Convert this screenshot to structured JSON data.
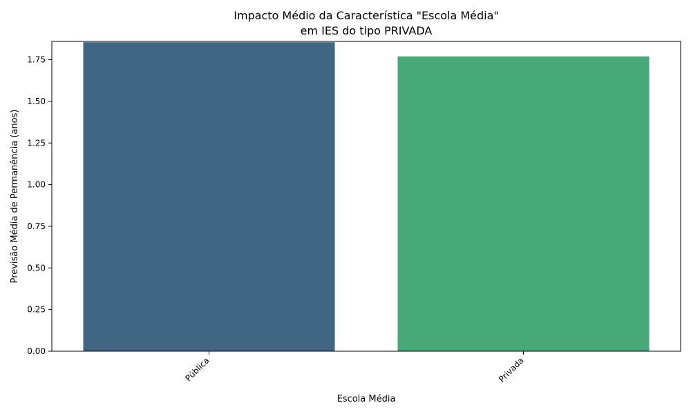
{
  "chart_data": {
    "type": "bar",
    "title_line1": "Impacto Médio da Característica \"Escola Média\"",
    "title_line2": "em IES do tipo PRIVADA",
    "xlabel": "Escola Média",
    "ylabel": "Previsão Média de Permanência (anos)",
    "categories": [
      "Pública",
      "Privada"
    ],
    "values": [
      1.855,
      1.77
    ],
    "colors": [
      "#3f6683",
      "#47a978"
    ],
    "ylim": [
      0,
      1.86
    ],
    "yticks": [
      "0.00",
      "0.25",
      "0.50",
      "0.75",
      "1.00",
      "1.25",
      "1.50",
      "1.75"
    ],
    "grid": false,
    "legend": "none"
  }
}
